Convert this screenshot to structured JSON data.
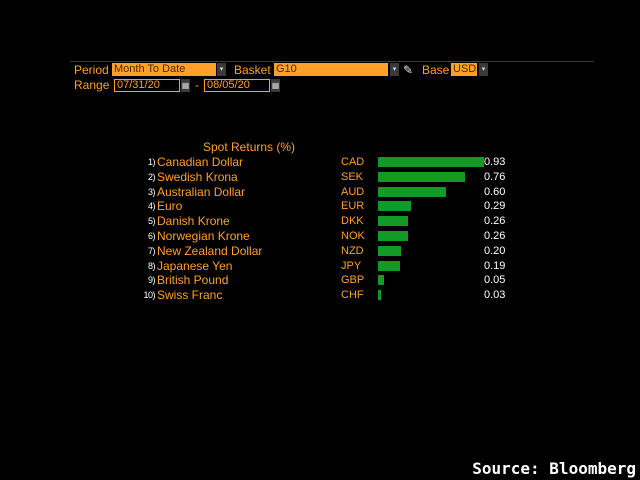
{
  "controls": {
    "period_label": "Period",
    "period_value": "Month To Date",
    "basket_label": "Basket",
    "basket_value": "G10",
    "base_label": "Base",
    "base_value": "USD",
    "range_label": "Range",
    "range_start": "07/31/20",
    "range_separator": "-",
    "range_end": "08/05/20",
    "dropdown_arrow": "▾",
    "calendar_glyph": "▦",
    "pencil_glyph": "✎"
  },
  "colors": {
    "accent": "#ffa028",
    "bar": "#119a25",
    "value_text": "#ffffff",
    "background": "#000000"
  },
  "chart_data": {
    "type": "bar",
    "title": "Spot Returns (%)",
    "orientation": "horizontal",
    "ranks": [
      "1)",
      "2)",
      "3)",
      "4)",
      "5)",
      "6)",
      "7)",
      "8)",
      "9)",
      "10)"
    ],
    "categories": [
      "Canadian Dollar",
      "Swedish Krona",
      "Australian Dollar",
      "Euro",
      "Danish Krone",
      "Norwegian Krone",
      "New Zealand Dollar",
      "Japanese Yen",
      "British Pound",
      "Swiss Franc"
    ],
    "codes": [
      "CAD",
      "SEK",
      "AUD",
      "EUR",
      "DKK",
      "NOK",
      "NZD",
      "JPY",
      "GBP",
      "CHF"
    ],
    "values": [
      0.93,
      0.76,
      0.6,
      0.29,
      0.26,
      0.26,
      0.2,
      0.19,
      0.05,
      0.03
    ],
    "value_labels": [
      "0.93",
      "0.76",
      "0.60",
      "0.29",
      "0.26",
      "0.26",
      "0.20",
      "0.19",
      "0.05",
      "0.03"
    ],
    "xlim": [
      0,
      0.93
    ]
  },
  "source": "Source: Bloomberg"
}
